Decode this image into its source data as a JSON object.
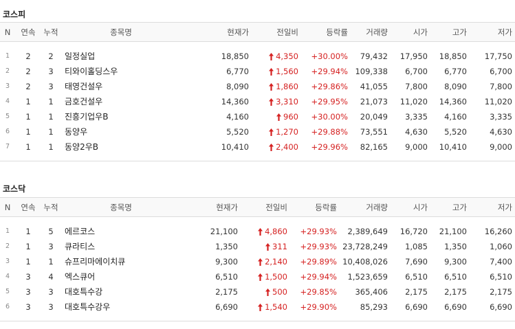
{
  "columns": [
    "N",
    "연속",
    "누적",
    "종목명",
    "현재가",
    "전일비",
    "등락률",
    "거래량",
    "시가",
    "고가",
    "저가"
  ],
  "colors": {
    "up": "#d52121"
  },
  "sections": [
    {
      "title": "코스피",
      "rows": [
        {
          "n": "1",
          "streak": "2",
          "total": "2",
          "name": "일정실업",
          "price": "18,850",
          "change": "4,350",
          "rate": "+30.00%",
          "volume": "79,432",
          "open": "17,950",
          "high": "18,850",
          "low": "17,750"
        },
        {
          "n": "2",
          "streak": "2",
          "total": "3",
          "name": "티와이홀딩스우",
          "price": "6,770",
          "change": "1,560",
          "rate": "+29.94%",
          "volume": "109,338",
          "open": "6,700",
          "high": "6,770",
          "low": "6,700"
        },
        {
          "n": "3",
          "streak": "2",
          "total": "3",
          "name": "태영건설우",
          "price": "8,090",
          "change": "1,860",
          "rate": "+29.86%",
          "volume": "41,055",
          "open": "7,800",
          "high": "8,090",
          "low": "7,800"
        },
        {
          "n": "4",
          "streak": "1",
          "total": "1",
          "name": "금호건설우",
          "price": "14,360",
          "change": "3,310",
          "rate": "+29.95%",
          "volume": "21,073",
          "open": "11,020",
          "high": "14,360",
          "low": "11,020"
        },
        {
          "n": "5",
          "streak": "1",
          "total": "1",
          "name": "진흥기업우B",
          "price": "4,160",
          "change": "960",
          "rate": "+30.00%",
          "volume": "20,049",
          "open": "3,335",
          "high": "4,160",
          "low": "3,335"
        },
        {
          "n": "6",
          "streak": "1",
          "total": "1",
          "name": "동양우",
          "price": "5,520",
          "change": "1,270",
          "rate": "+29.88%",
          "volume": "73,551",
          "open": "4,630",
          "high": "5,520",
          "low": "4,630"
        },
        {
          "n": "7",
          "streak": "1",
          "total": "1",
          "name": "동양2우B",
          "price": "10,410",
          "change": "2,400",
          "rate": "+29.96%",
          "volume": "82,165",
          "open": "9,000",
          "high": "10,410",
          "low": "9,000"
        }
      ]
    },
    {
      "title": "코스닥",
      "rows": [
        {
          "n": "1",
          "streak": "1",
          "total": "5",
          "name": "에르코스",
          "price": "21,100",
          "change": "4,860",
          "rate": "+29.93%",
          "volume": "2,389,649",
          "open": "16,720",
          "high": "21,100",
          "low": "16,260"
        },
        {
          "n": "2",
          "streak": "1",
          "total": "3",
          "name": "큐라티스",
          "price": "1,350",
          "change": "311",
          "rate": "+29.93%",
          "volume": "23,728,249",
          "open": "1,085",
          "high": "1,350",
          "low": "1,060"
        },
        {
          "n": "3",
          "streak": "1",
          "total": "1",
          "name": "슈프리마에이치큐",
          "price": "9,300",
          "change": "2,140",
          "rate": "+29.89%",
          "volume": "10,408,026",
          "open": "7,690",
          "high": "9,300",
          "low": "7,400"
        },
        {
          "n": "4",
          "streak": "3",
          "total": "4",
          "name": "엑스큐어",
          "price": "6,510",
          "change": "1,500",
          "rate": "+29.94%",
          "volume": "1,523,659",
          "open": "6,510",
          "high": "6,510",
          "low": "6,510"
        },
        {
          "n": "5",
          "streak": "3",
          "total": "3",
          "name": "대호특수강",
          "price": "2,175",
          "change": "500",
          "rate": "+29.85%",
          "volume": "365,406",
          "open": "2,175",
          "high": "2,175",
          "low": "2,175"
        },
        {
          "n": "6",
          "streak": "3",
          "total": "3",
          "name": "대호특수강우",
          "price": "6,690",
          "change": "1,540",
          "rate": "+29.90%",
          "volume": "85,293",
          "open": "6,690",
          "high": "6,690",
          "low": "6,690"
        }
      ]
    }
  ]
}
